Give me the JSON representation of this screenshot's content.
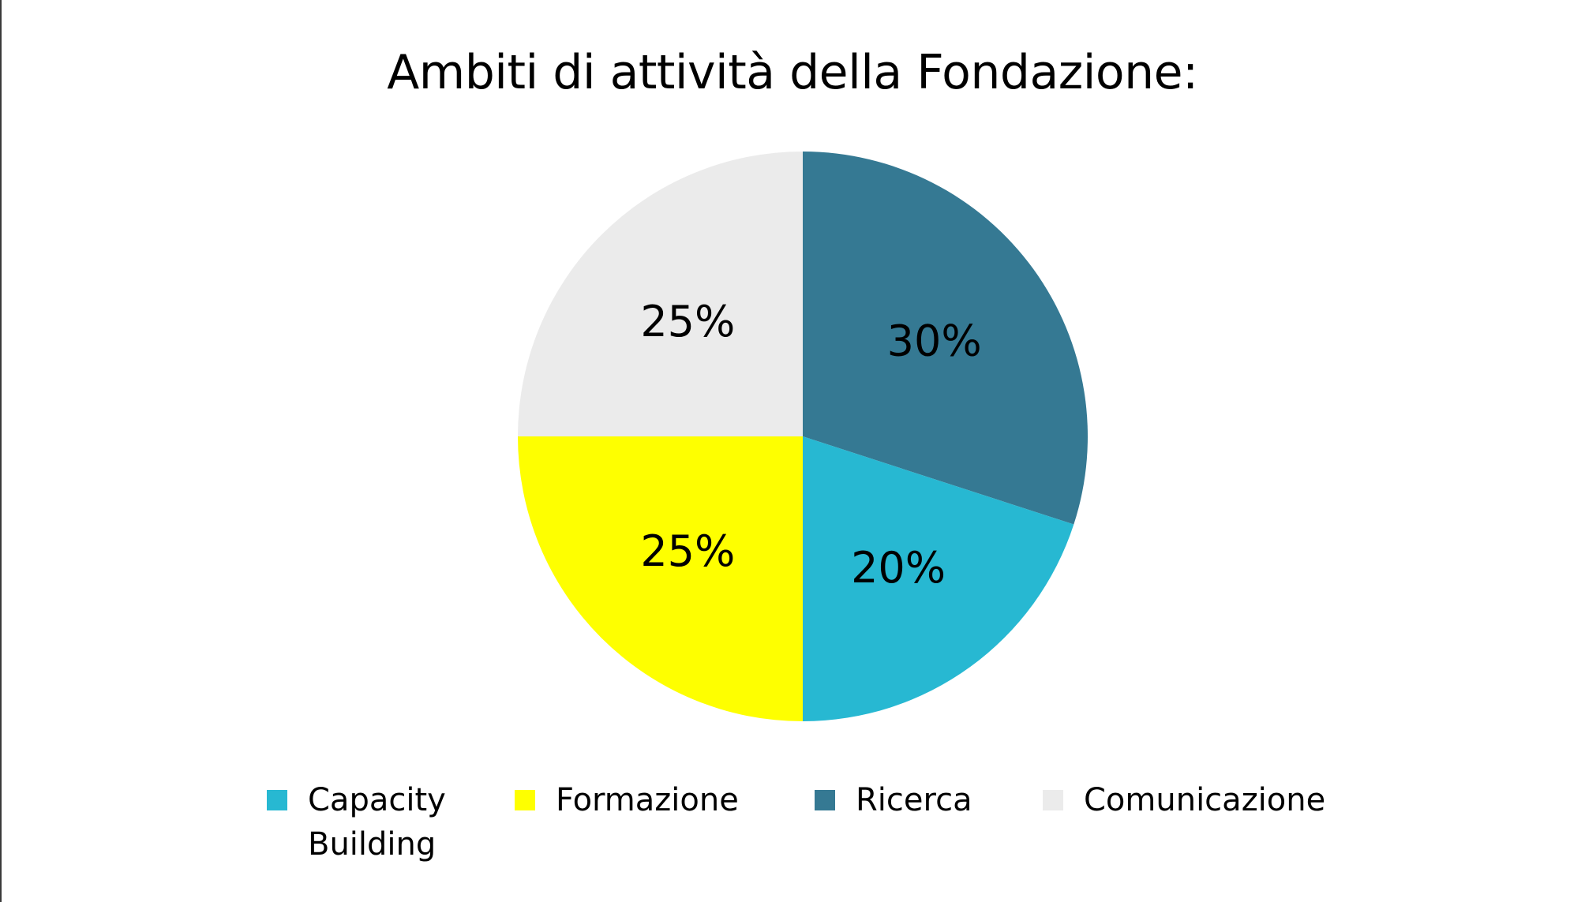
{
  "chart_data": {
    "type": "pie",
    "title": "Ambiti di attività della Fondazione:",
    "slices": [
      {
        "name": "Ricerca",
        "value": 30,
        "label": "30%",
        "color": "#357993"
      },
      {
        "name": "Capacity Building",
        "value": 20,
        "label": "20%",
        "color": "#27b8d2"
      },
      {
        "name": "Formazione",
        "value": 25,
        "label": "25%",
        "color": "#feff00"
      },
      {
        "name": "Comunicazione",
        "value": 25,
        "label": "25%",
        "color": "#ebebeb"
      }
    ],
    "start_angle": "12 o'clock",
    "direction": "clockwise",
    "legend": {
      "position": "bottom",
      "items": [
        "Capacity Building",
        "Formazione",
        "Ricerca",
        "Comunicazione"
      ],
      "colors": [
        "#27b8d2",
        "#feff00",
        "#357993",
        "#ebebeb"
      ]
    }
  }
}
